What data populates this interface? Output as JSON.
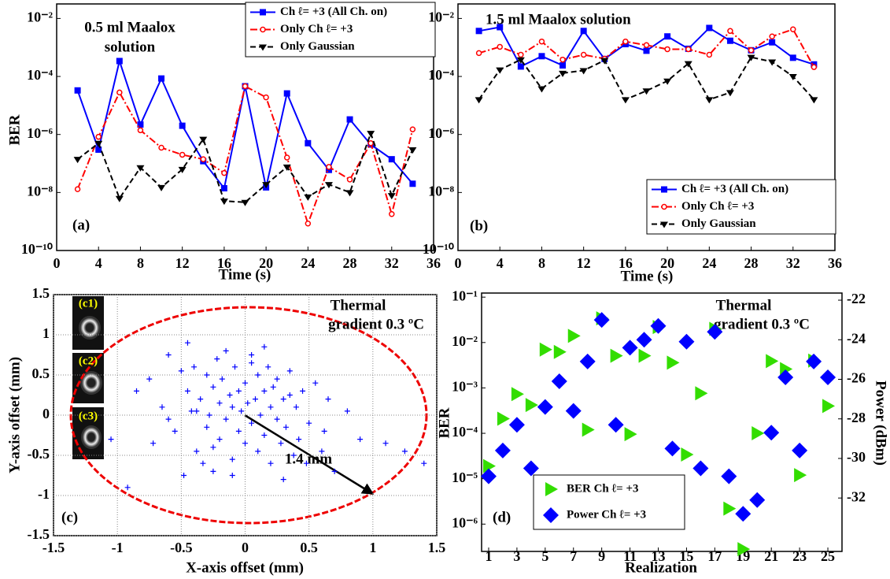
{
  "chart_data": [
    {
      "type": "line",
      "panel_label": "(a)",
      "annotations": [
        "0.5 ml Maalox",
        "solution"
      ],
      "xlabel": "Time (s)",
      "ylabel": "BER",
      "x": [
        2,
        4,
        6,
        8,
        10,
        12,
        14,
        16,
        18,
        20,
        22,
        24,
        26,
        28,
        30,
        32,
        34
      ],
      "xlim": [
        0,
        36
      ],
      "xticks": [
        0,
        4,
        8,
        12,
        16,
        20,
        24,
        28,
        32,
        36
      ],
      "ylog": true,
      "ylim": [
        1e-10,
        0.0316
      ],
      "yticks": [
        {
          "value": 1e-10,
          "label": "10⁻¹⁰"
        },
        {
          "value": 1e-08,
          "label": "10⁻⁸"
        },
        {
          "value": 1e-06,
          "label": "10⁻⁶"
        },
        {
          "value": 0.0001,
          "label": "10⁻⁴"
        },
        {
          "value": 0.01,
          "label": "10⁻²"
        }
      ],
      "legend": "upper right",
      "series": [
        {
          "name": "Ch ℓ= +3 (All Ch. on)",
          "color": "#0000ff",
          "marker": "square",
          "linestyle": "solid",
          "values": [
            3.3e-05,
            3e-07,
            0.00034,
            2.2e-06,
            8.5e-05,
            2e-06,
            1.2e-07,
            1.4e-08,
            4.6e-05,
            1.5e-08,
            2.6e-05,
            5e-07,
            6e-08,
            3.3e-06,
            4.5e-07,
            1.4e-07,
            2e-08
          ]
        },
        {
          "name": "Only Ch ℓ= +3",
          "color": "#ff0000",
          "marker": "circle",
          "linestyle": "dashdot",
          "values": [
            1.3e-08,
            8.3e-07,
            2.8e-05,
            1.4e-06,
            3.5e-07,
            2e-07,
            1.4e-07,
            4.7e-08,
            4.6e-05,
            1.9e-05,
            1.6e-07,
            8.5e-10,
            7.6e-08,
            2.8e-08,
            5e-07,
            1.8e-09,
            1.5e-06
          ]
        },
        {
          "name": "Only Gaussian",
          "color": "#000000",
          "marker": "triangle-down",
          "linestyle": "dashed",
          "values": [
            1.4e-07,
            5e-07,
            6.3e-09,
            7.2e-08,
            1.5e-08,
            6.3e-08,
            6.9e-07,
            5.1e-09,
            4.6e-09,
            1.9e-08,
            7.6e-08,
            7.1e-09,
            1.9e-08,
            1e-08,
            1.1e-06,
            7.9e-09,
            3e-07
          ]
        }
      ]
    },
    {
      "type": "line",
      "panel_label": "(b)",
      "annotations": [
        "1.5 ml Maalox solution"
      ],
      "xlabel": "Time (s)",
      "x": [
        2,
        4,
        6,
        8,
        10,
        12,
        14,
        16,
        18,
        20,
        22,
        24,
        26,
        28,
        30,
        32,
        34
      ],
      "xlim": [
        0,
        36
      ],
      "xticks": [
        0,
        4,
        8,
        12,
        16,
        20,
        24,
        28,
        32,
        36
      ],
      "ylog": true,
      "ylim": [
        1e-10,
        0.0316
      ],
      "yticks": [
        {
          "value": 1e-10,
          "label": "10⁻¹⁰"
        },
        {
          "value": 1e-08,
          "label": "10⁻⁸"
        },
        {
          "value": 1e-06,
          "label": "10⁻⁶"
        },
        {
          "value": 0.0001,
          "label": "10⁻⁴"
        },
        {
          "value": 0.01,
          "label": "10⁻²"
        }
      ],
      "legend": "lower right",
      "series": [
        {
          "name": "Ch ℓ= +3 (All Ch. on)",
          "color": "#0000ff",
          "marker": "square",
          "linestyle": "solid",
          "values": [
            0.0037,
            0.005,
            0.00022,
            0.0005,
            0.00024,
            0.0037,
            0.0004,
            0.0013,
            0.00077,
            0.0024,
            0.0009,
            0.0047,
            0.0017,
            0.0008,
            0.0015,
            0.00044,
            0.00026
          ]
        },
        {
          "name": "Only Ch ℓ= +3",
          "color": "#ff0000",
          "marker": "circle",
          "linestyle": "dashdot",
          "values": [
            0.00064,
            0.00105,
            0.00056,
            0.0016,
            0.00038,
            0.00056,
            0.00041,
            0.0016,
            0.0012,
            0.00087,
            0.00087,
            0.00056,
            0.0037,
            0.0008,
            0.0024,
            0.0042,
            0.00021
          ]
        },
        {
          "name": "Only Gaussian",
          "color": "#000000",
          "marker": "triangle-down",
          "linestyle": "dashed",
          "values": [
            1.6e-05,
            0.00017,
            0.00038,
            3.8e-05,
            0.00013,
            0.00016,
            0.00036,
            1.6e-05,
            3.2e-05,
            7e-05,
            0.00028,
            1.6e-05,
            2.8e-05,
            0.00046,
            0.00032,
            0.0001,
            1.6e-05
          ]
        }
      ]
    },
    {
      "type": "scatter",
      "panel_label": "(c)",
      "annotations": [
        "Thermal",
        "gradient 0.3 ºC",
        "1.4 mm"
      ],
      "inset_labels": [
        "(c1)",
        "(c2)",
        "(c3)"
      ],
      "xlabel": "X-axis offset (mm)",
      "ylabel": "Y-axis offset (mm)",
      "xlim": [
        -1.5,
        1.5
      ],
      "xticks": [
        -1.5,
        -1,
        -0.5,
        0,
        0.5,
        1,
        1.5
      ],
      "ylim": [
        -1.5,
        1.5
      ],
      "yticks": [
        -1.5,
        -1,
        -0.5,
        0,
        0.5,
        1,
        1.5
      ],
      "grid": true,
      "series": [
        {
          "color": "#0000ff",
          "marker": "plus",
          "x": [
            -0.92,
            -0.85,
            -0.72,
            -0.65,
            -0.6,
            -0.55,
            -0.5,
            -0.48,
            -0.45,
            -0.42,
            -0.4,
            -0.38,
            -0.35,
            -0.33,
            -0.3,
            -0.3,
            -0.28,
            -0.25,
            -0.25,
            -0.22,
            -0.2,
            -0.2,
            -0.18,
            -0.15,
            -0.15,
            -0.12,
            -0.1,
            -0.1,
            -0.08,
            -0.05,
            -0.05,
            -0.03,
            0,
            0,
            0.02,
            0.05,
            0.05,
            0.08,
            0.1,
            0.1,
            0.12,
            0.15,
            0.15,
            0.18,
            0.2,
            0.2,
            0.22,
            0.25,
            0.25,
            0.28,
            0.3,
            0.32,
            0.35,
            0.38,
            0.4,
            0.42,
            0.45,
            0.5,
            0.55,
            0.6,
            0.65,
            0.7,
            0.8,
            0.9,
            1.1,
            1.25,
            1.4,
            -1.05,
            -0.75,
            -0.45,
            0.3,
            0.05,
            -0.25,
            -0.6,
            0.48,
            0.15,
            -0.1,
            0.35,
            -0.38,
            0.62
          ],
          "values": [
            -0.9,
            0.3,
            -0.35,
            0.1,
            0.75,
            -0.2,
            0.55,
            -0.75,
            0.3,
            0.05,
            0.6,
            -0.45,
            0.2,
            -0.6,
            0.5,
            -0.15,
            0,
            0.35,
            -0.4,
            0.7,
            0.15,
            -0.3,
            0.45,
            -0.05,
            0.8,
            0.25,
            -0.55,
            0.1,
            0.6,
            0.3,
            -0.2,
            0.05,
            0.4,
            -0.35,
            0.15,
            0.75,
            -0.1,
            0.2,
            -0.45,
            0.5,
            0,
            0.3,
            -0.25,
            0.6,
            -0.6,
            0.1,
            0.35,
            -0.05,
            0.45,
            -0.35,
            0.2,
            -0.15,
            0.55,
            -0.5,
            0.1,
            -0.3,
            0.3,
            -0.1,
            0.4,
            -0.45,
            0.2,
            -0.7,
            0.05,
            -0.3,
            -0.35,
            -0.45,
            -0.6,
            -0.3,
            0.45,
            0.9,
            -0.8,
            0.65,
            -0.7,
            -0.05,
            -0.6,
            0.85,
            -0.75,
            0.25,
            0.05,
            -0.2
          ]
        }
      ]
    },
    {
      "type": "scatter",
      "panel_label": "(d)",
      "annotations": [
        "Thermal",
        "gradient 0.3 ºC"
      ],
      "xlabel": "Realization",
      "ylabel": "BER",
      "y2label": "Power (dBm)",
      "x": [
        1,
        2,
        3,
        4,
        5,
        6,
        7,
        8,
        9,
        10,
        11,
        12,
        13,
        14,
        15,
        16,
        17,
        18,
        19,
        20,
        21,
        22,
        23,
        24,
        25
      ],
      "xlim": [
        0.5,
        26
      ],
      "xticks": [
        1,
        3,
        5,
        7,
        9,
        11,
        13,
        15,
        17,
        19,
        21,
        23,
        25
      ],
      "ylog": true,
      "ylim": [
        2.5e-07,
        0.123
      ],
      "yticks": [
        {
          "value": 1e-06,
          "label": "10⁻⁶"
        },
        {
          "value": 1e-05,
          "label": "10⁻⁵"
        },
        {
          "value": 0.0001,
          "label": "10⁻⁴"
        },
        {
          "value": 0.001,
          "label": "10⁻³"
        },
        {
          "value": 0.01,
          "label": "10⁻²"
        },
        {
          "value": 0.1,
          "label": "10⁻¹"
        }
      ],
      "y2lim": [
        -34.7,
        -21.64
      ],
      "y2ticks": [
        -22,
        -24,
        -26,
        -28,
        -30,
        -32
      ],
      "legend": "lower left",
      "series": [
        {
          "name": "BER Ch ℓ= +3",
          "color": "#33dd00",
          "marker": "triangle-right",
          "values": [
            1.9e-05,
            0.00021,
            0.00073,
            0.00042,
            0.007,
            0.0062,
            0.014,
            0.00012,
            0.034,
            0.0051,
            9.6e-05,
            0.0051,
            0.022,
            0.0036,
            3.4e-05,
            0.00076,
            0.02,
            2.2e-06,
            2.8e-07,
            0.0001,
            0.0039,
            0.0026,
            1.2e-05,
            0.004,
            0.0004
          ]
        },
        {
          "name": "Power Ch ℓ= +3",
          "color": "#0000ff",
          "marker": "diamond",
          "axis": "y2",
          "values": [
            -30.9,
            -29.6,
            -28.3,
            -30.5,
            -27.4,
            -26.1,
            -27.6,
            -25.1,
            -23.0,
            -28.3,
            -24.4,
            -24.0,
            -23.3,
            -29.5,
            -24.1,
            -30.5,
            -23.6,
            -30.9,
            -32.8,
            -32.1,
            -28.7,
            -25.9,
            -29.6,
            -25.1,
            -25.9
          ]
        }
      ]
    }
  ]
}
